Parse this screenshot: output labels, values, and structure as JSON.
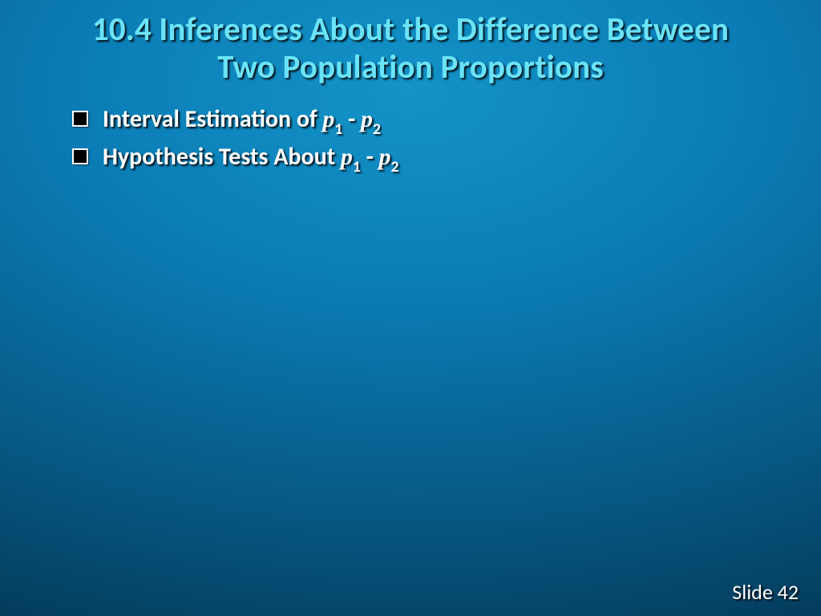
{
  "slide": {
    "title_line1": "10.4 Inferences About the Difference Between",
    "title_line2": "Two Population Proportions",
    "bullets": [
      {
        "lead": "Interval Estimation of  ",
        "var1": "p",
        "sub1": "1",
        "mid": " - ",
        "var2": "p",
        "sub2": "2"
      },
      {
        "lead": "Hypothesis Tests About  ",
        "var1": "p",
        "sub1": "1",
        "mid": " - ",
        "var2": "p",
        "sub2": "2"
      }
    ],
    "footer_label": "Slide ",
    "footer_number": "42"
  },
  "style": {
    "title_color": "#6ae3f7",
    "text_color": "#ffffff",
    "bullet_fill": "#000000",
    "bullet_border": "#ffffff",
    "bg_gradient_inner": "#1393c8",
    "bg_gradient_outer": "#022a42",
    "title_fontsize_pt": 32,
    "bullet_fontsize_pt": 23,
    "footer_fontsize_pt": 20
  }
}
